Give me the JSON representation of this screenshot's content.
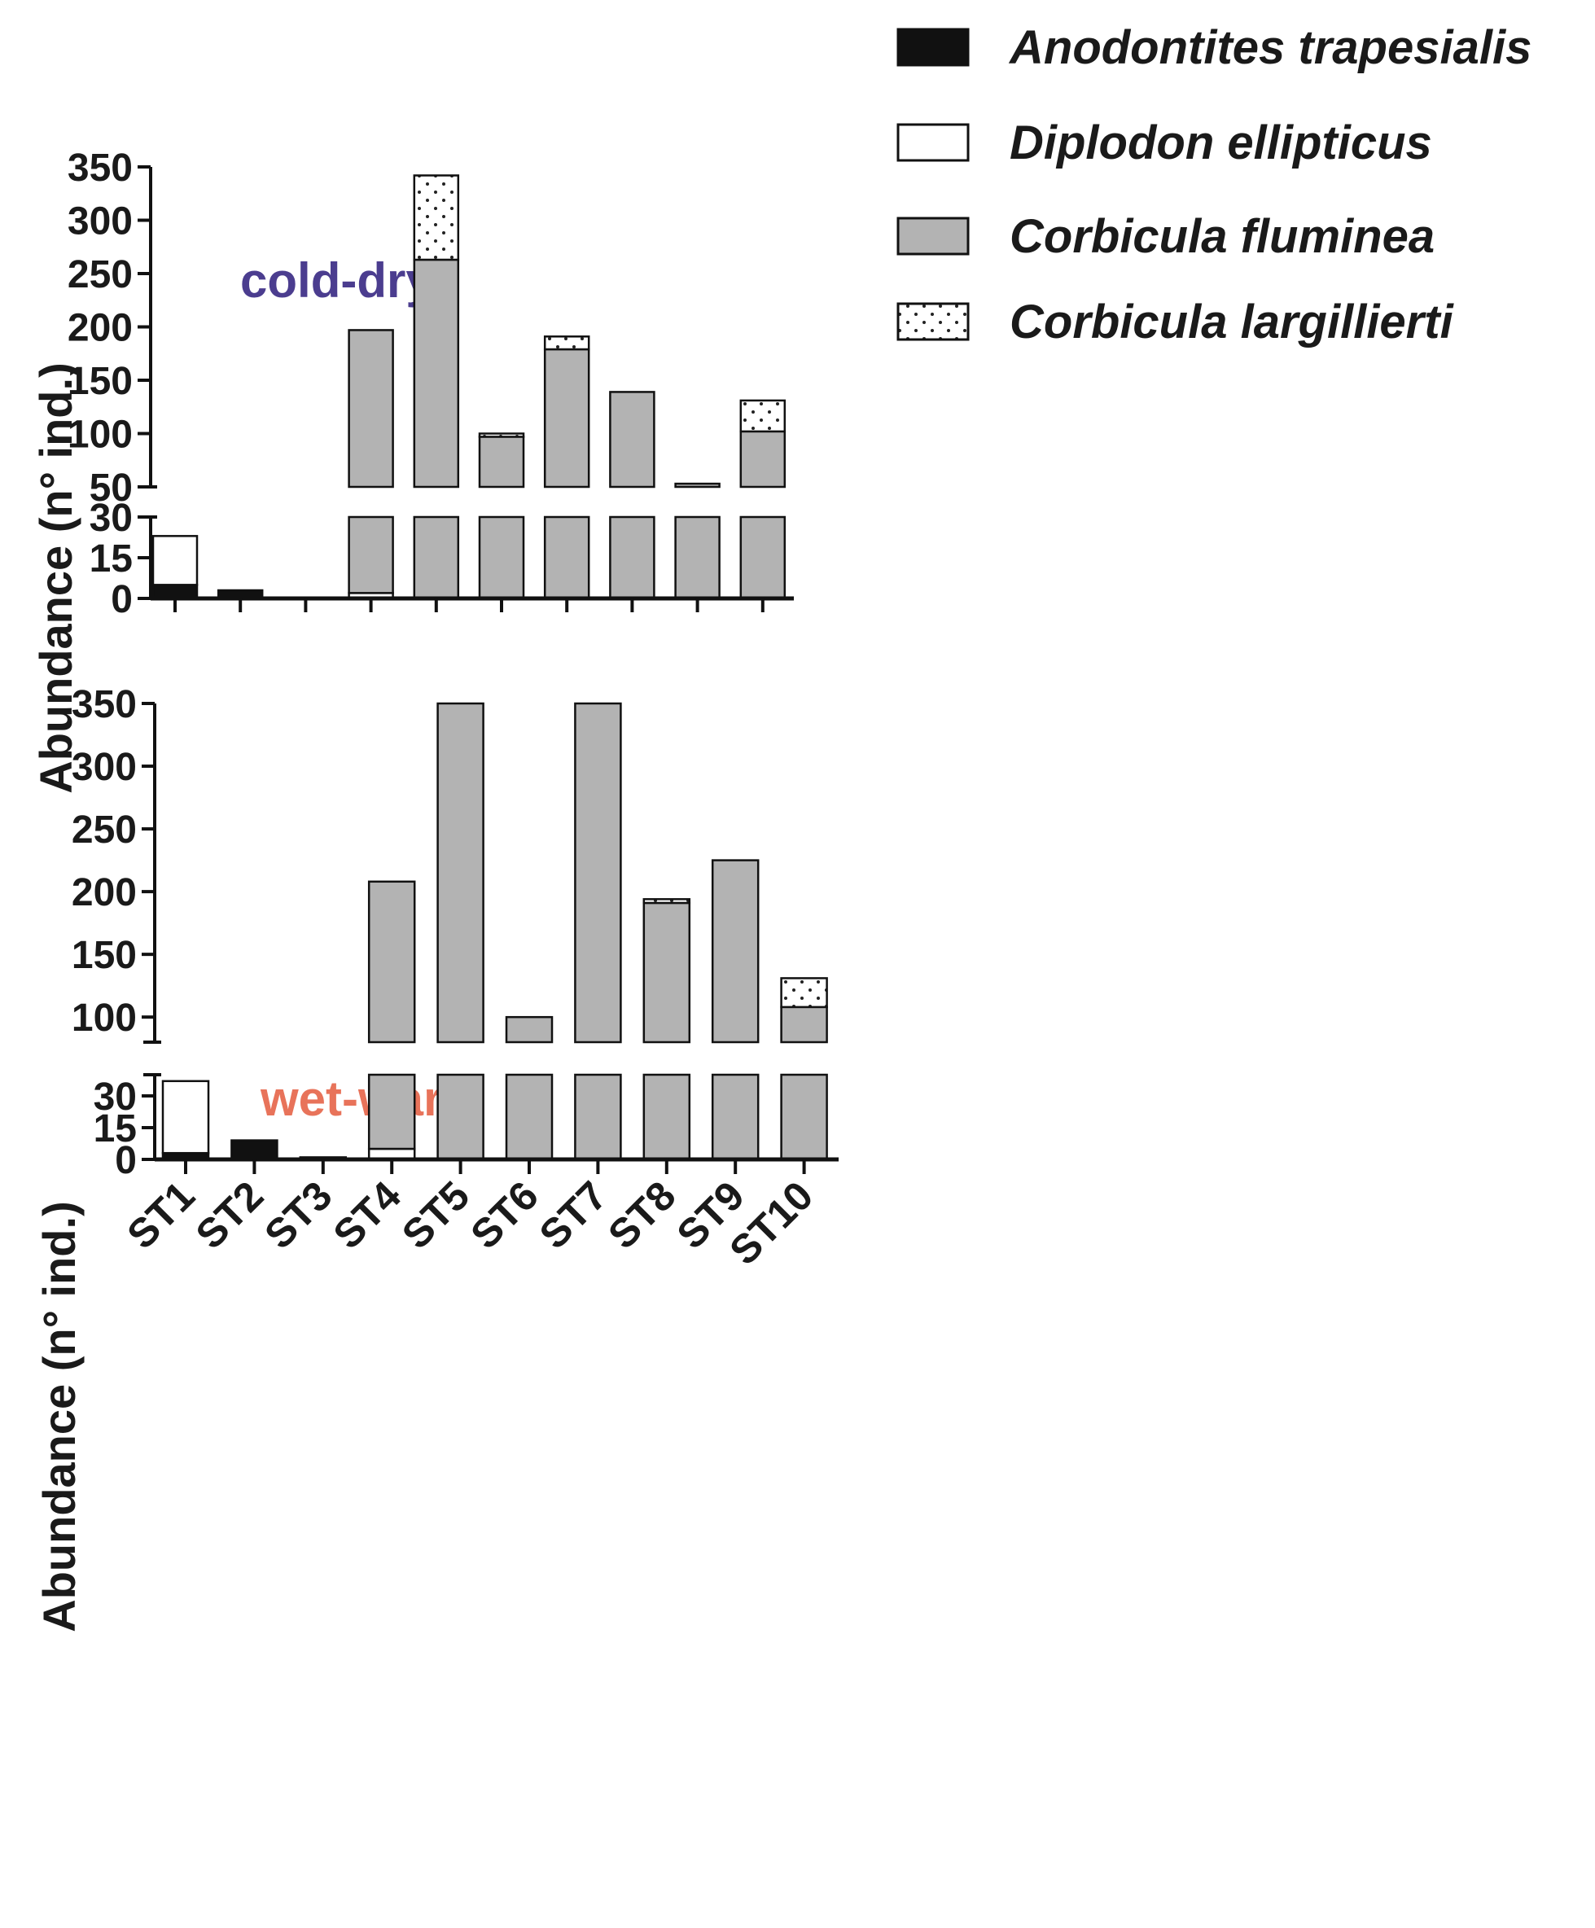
{
  "chart_data": {
    "type": "bar",
    "stacked": true,
    "legend_position": "top-right",
    "species": [
      {
        "name": "Anodontites trapesialis",
        "color": "#111111",
        "pattern": "solid"
      },
      {
        "name": "Diplodon ellipticus",
        "color": "#ffffff",
        "pattern": "solid"
      },
      {
        "name": "Corbicula fluminea",
        "color": "#b3b3b3",
        "pattern": "solid"
      },
      {
        "name": "Corbicula largillierti",
        "color": "#ffffff",
        "pattern": "dots"
      }
    ],
    "categories": [
      "ST1",
      "ST2",
      "ST3",
      "ST4",
      "ST5",
      "ST6",
      "ST7",
      "ST8",
      "ST9",
      "ST10"
    ],
    "panels": [
      {
        "label": "cold-dry",
        "label_color": "#4b3d8f",
        "ylabel": "Abundance (n° ind.)",
        "broken_axis": true,
        "lower_range": [
          0,
          30
        ],
        "lower_ticks": [
          "0",
          "15",
          "30"
        ],
        "upper_range": [
          50,
          350
        ],
        "upper_ticks": [
          "50",
          "100",
          "150",
          "200",
          "250",
          "300",
          "350"
        ],
        "series": [
          {
            "name": "Anodontites trapesialis",
            "values": [
              5,
              3,
              0,
              0,
              0,
              0,
              0,
              0,
              0,
              0
            ]
          },
          {
            "name": "Diplodon ellipticus",
            "values": [
              18,
              0,
              0,
              2,
              0,
              0,
              0,
              0,
              0,
              0
            ]
          },
          {
            "name": "Corbicula fluminea",
            "values": [
              0,
              0,
              0,
              195,
              263,
              97,
              179,
              139,
              53,
              102
            ]
          },
          {
            "name": "Corbicula largillierti",
            "values": [
              0,
              0,
              0,
              0,
              79,
              3,
              12,
              0,
              0,
              29
            ]
          }
        ]
      },
      {
        "label": "wet-warm",
        "label_color": "#e8735a",
        "ylabel": "Abundance (n° ind.)",
        "broken_axis": true,
        "lower_range": [
          0,
          40
        ],
        "lower_ticks": [
          "0",
          "15",
          "30"
        ],
        "upper_range": [
          80,
          350
        ],
        "upper_ticks": [
          "100",
          "150",
          "200",
          "250",
          "300",
          "350"
        ],
        "series": [
          {
            "name": "Anodontites trapesialis",
            "values": [
              3,
              9,
              0,
              0,
              0,
              0,
              0,
              0,
              0,
              0
            ]
          },
          {
            "name": "Diplodon ellipticus",
            "values": [
              34,
              0,
              1,
              5,
              0,
              0,
              0,
              0,
              0,
              0
            ]
          },
          {
            "name": "Corbicula fluminea",
            "values": [
              0,
              0,
              0,
              203,
              350,
              100,
              350,
              191,
              225,
              108
            ]
          },
          {
            "name": "Corbicula largillierti",
            "values": [
              0,
              0,
              0,
              0,
              0,
              0,
              0,
              3,
              0,
              23
            ]
          }
        ]
      }
    ]
  }
}
